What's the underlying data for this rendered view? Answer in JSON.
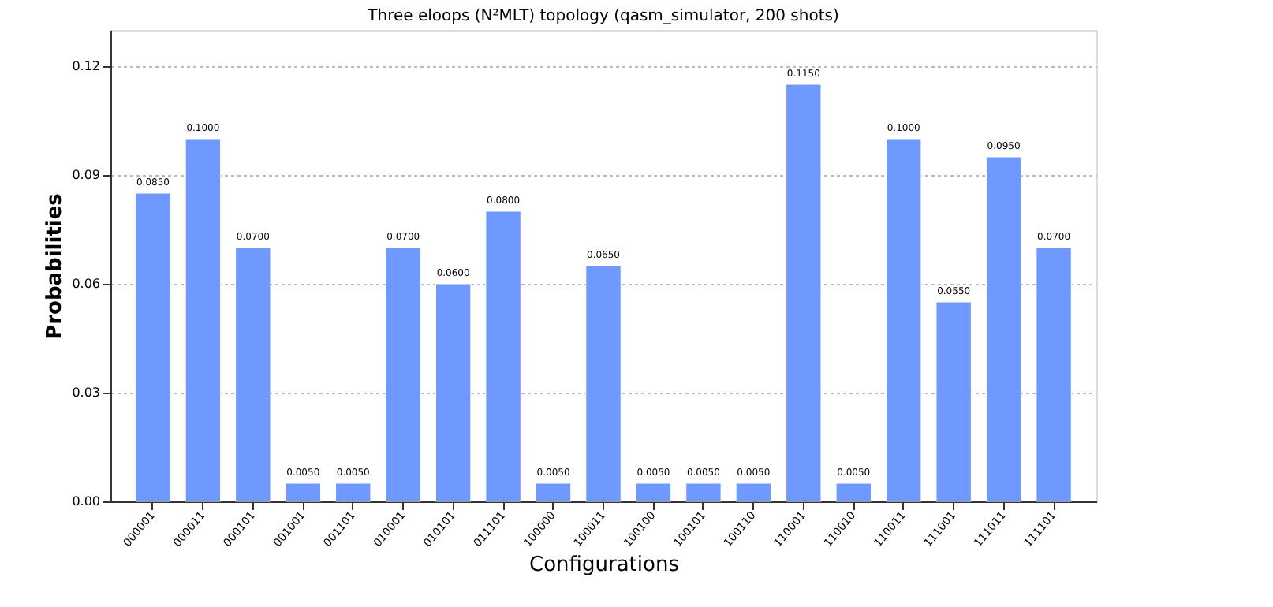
{
  "chart_data": {
    "type": "bar",
    "title": "Three eloops (N²MLT) topology (qasm_simulator, 200 shots)",
    "xlabel": "Configurations",
    "ylabel": "Probabilities",
    "categories": [
      "000001",
      "000011",
      "000101",
      "001001",
      "001101",
      "010001",
      "010101",
      "011101",
      "100000",
      "100011",
      "100100",
      "100101",
      "100110",
      "110001",
      "110010",
      "110011",
      "111001",
      "111011",
      "111101"
    ],
    "values": [
      0.085,
      0.1,
      0.07,
      0.005,
      0.005,
      0.07,
      0.06,
      0.08,
      0.005,
      0.065,
      0.005,
      0.005,
      0.005,
      0.115,
      0.005,
      0.1,
      0.055,
      0.095,
      0.07
    ],
    "value_labels": [
      "0.0850",
      "0.1000",
      "0.0700",
      "0.0050",
      "0.0050",
      "0.0700",
      "0.0600",
      "0.0800",
      "0.0050",
      "0.0650",
      "0.0050",
      "0.0050",
      "0.0050",
      "0.1150",
      "0.0050",
      "0.1000",
      "0.0550",
      "0.0950",
      "0.0700"
    ],
    "color": "#7099ff",
    "ylim": [
      0,
      0.13
    ],
    "yticks": [
      {
        "value": 0,
        "label": "0.00"
      },
      {
        "value": 0.03,
        "label": "0.03"
      },
      {
        "value": 0.06,
        "label": "0.06"
      },
      {
        "value": 0.09,
        "label": "0.09"
      },
      {
        "value": 0.12,
        "label": "0.12"
      }
    ],
    "grid": "y"
  }
}
